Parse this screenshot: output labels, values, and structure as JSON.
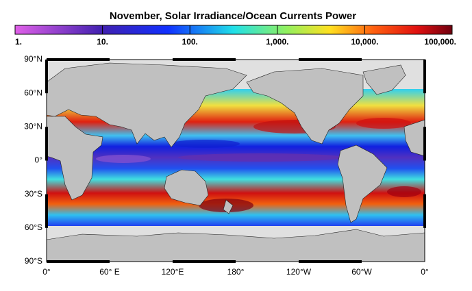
{
  "title": "November, Solar Irradiance/Ocean Currents Power",
  "colorbar": {
    "tick_labels": [
      "1.",
      "10.",
      "100.",
      "1,000.",
      "10,000.",
      "100,000."
    ]
  },
  "lat_labels": [
    "90°N",
    "60°N",
    "30°N",
    "0°",
    "30°S",
    "60°S",
    "90°S"
  ],
  "lon_labels": [
    "0°",
    "60° E",
    "120°E",
    "180°",
    "120°W",
    "60°W",
    "0°"
  ]
}
